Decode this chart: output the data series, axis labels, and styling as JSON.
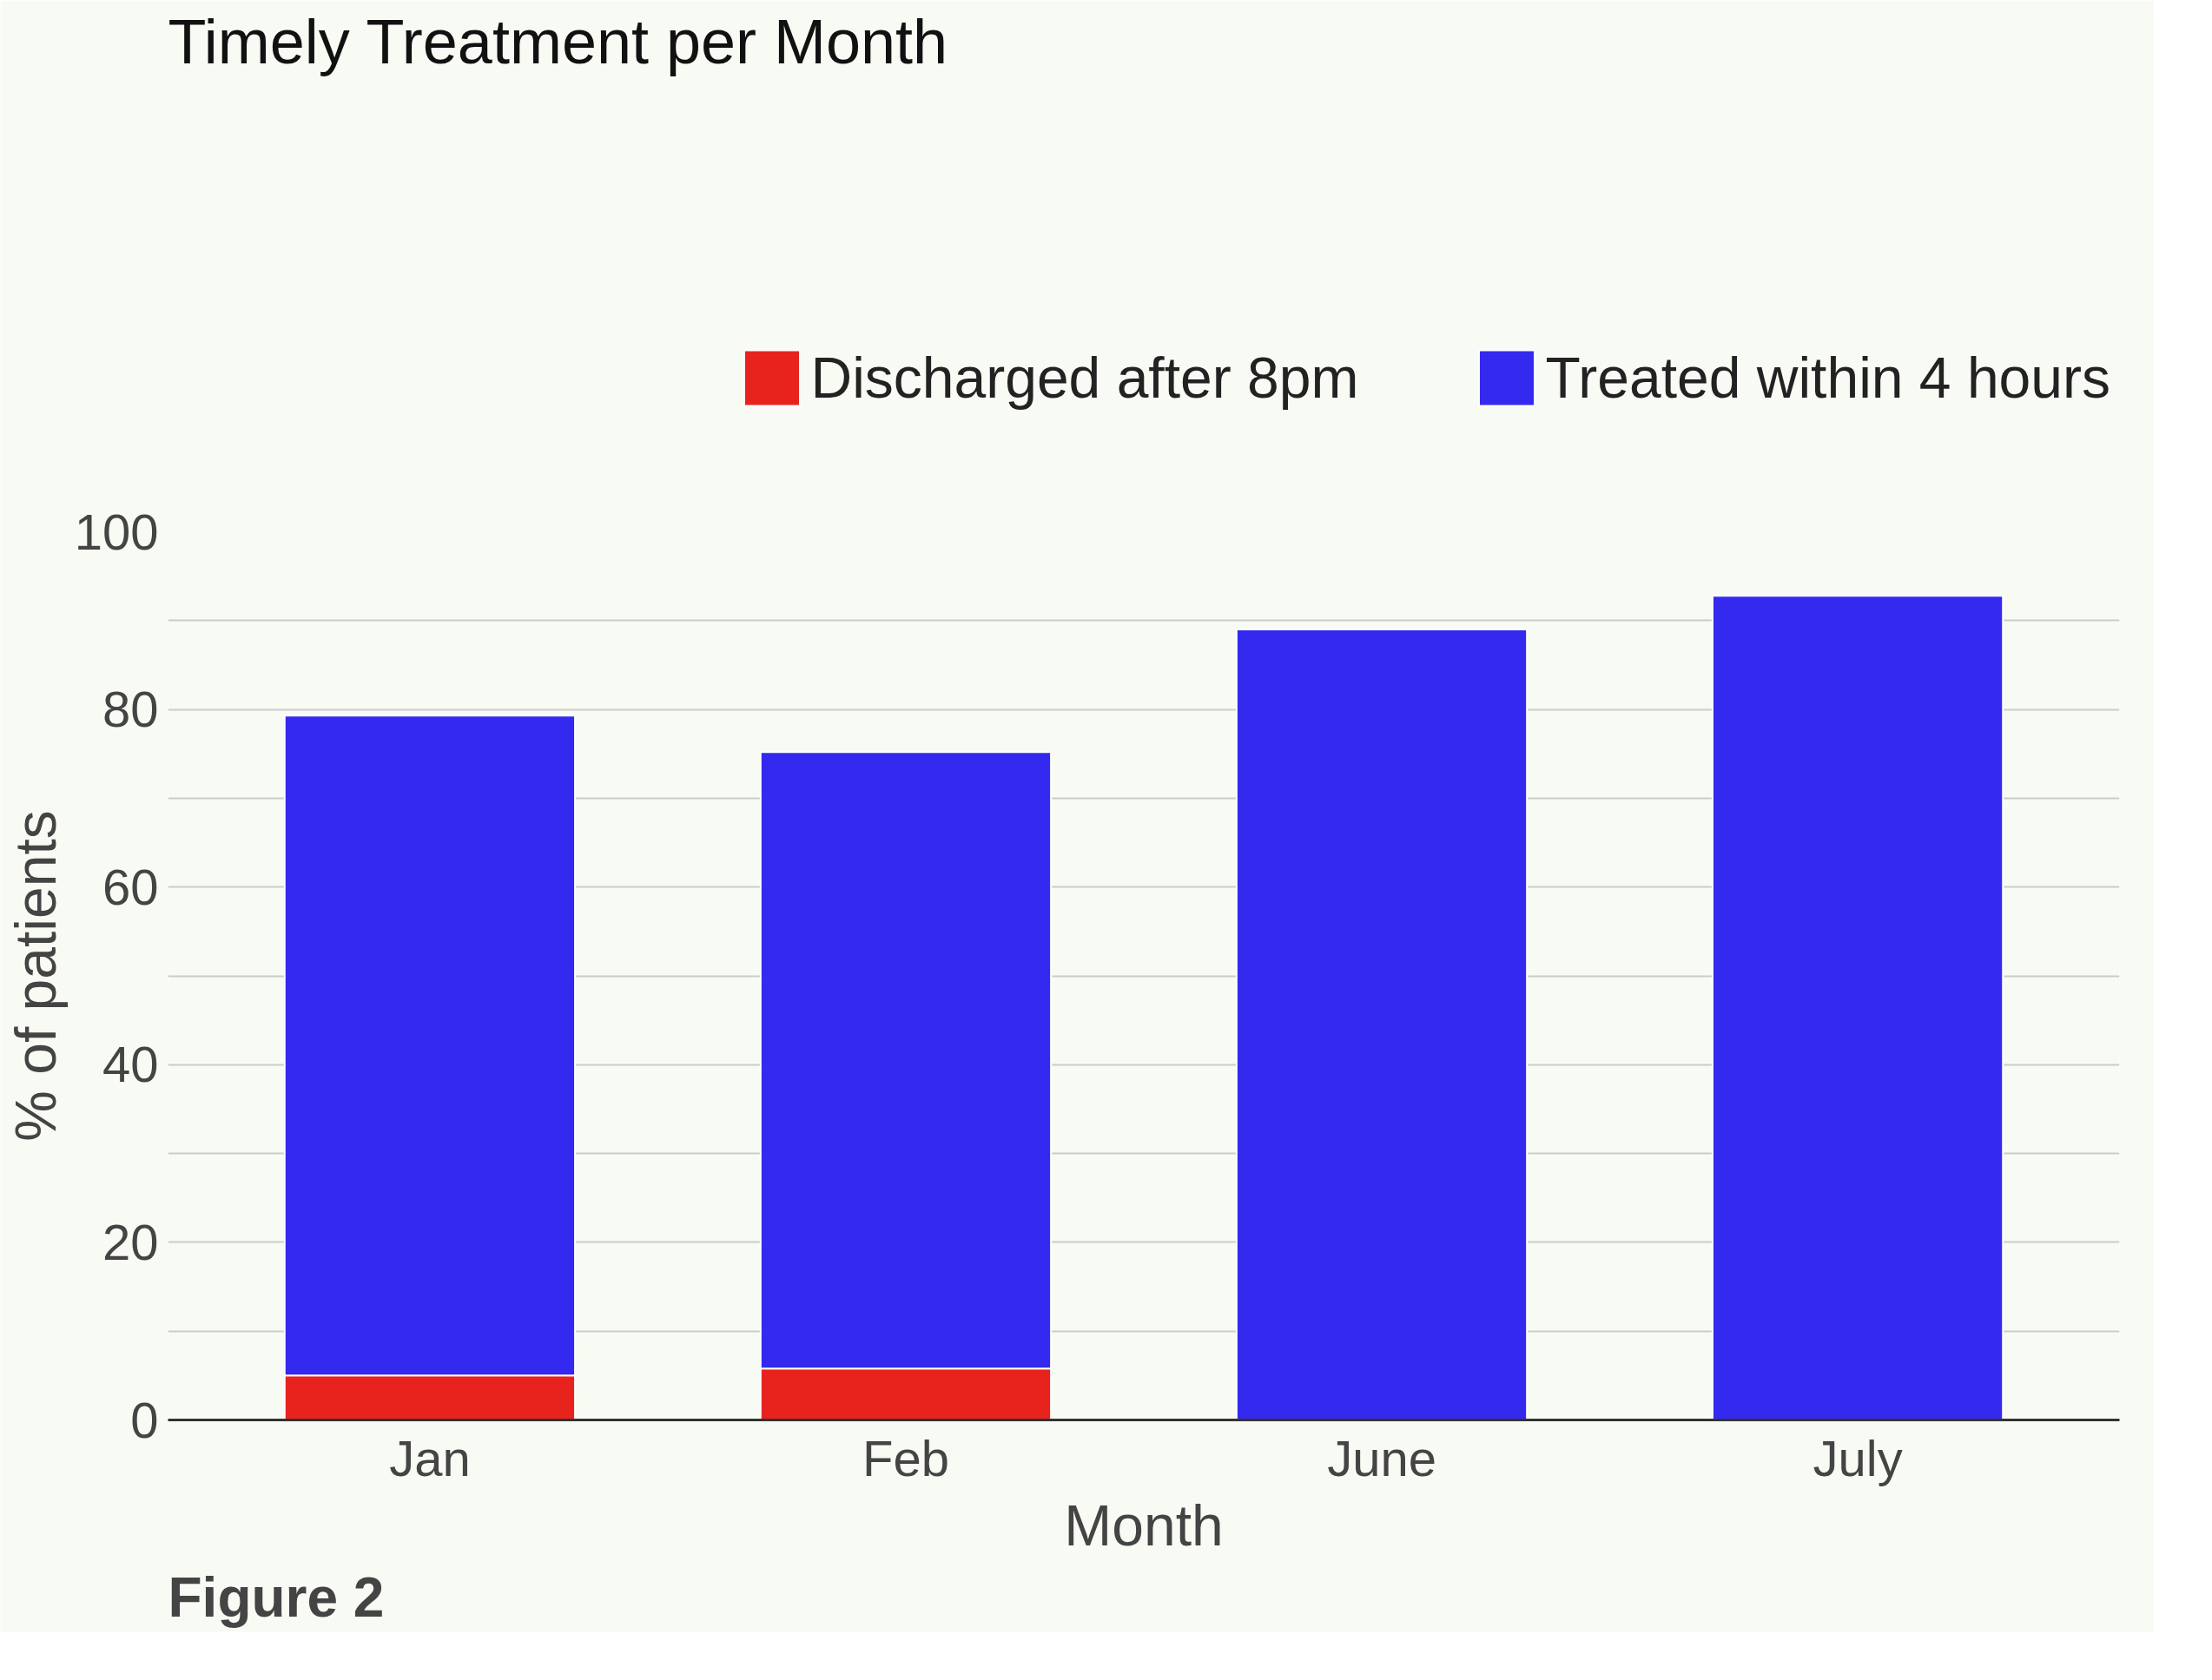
{
  "chart_data": {
    "type": "bar",
    "title": "Timely Treatment per Month",
    "xlabel": "Month",
    "ylabel": "% of patients",
    "categories": [
      "Jan",
      "Feb",
      "June",
      "July"
    ],
    "stacked": true,
    "series": [
      {
        "name": "Discharged after 8pm",
        "color": "#e8231d",
        "values": [
          5,
          5.8,
          0,
          0
        ]
      },
      {
        "name": "Treated within 4 hours",
        "color": "#3429ee",
        "values": [
          74.3,
          69.4,
          89,
          92.8
        ]
      }
    ],
    "ylim": [
      0,
      100
    ],
    "yticks": [
      0,
      {
        "value": 10,
        "label": null
      },
      20,
      {
        "value": 30,
        "label": null
      },
      40,
      {
        "value": 50,
        "label": null
      },
      60,
      {
        "value": 70,
        "label": null
      },
      80,
      {
        "value": 90,
        "label": null
      },
      100
    ],
    "grid": "y",
    "legend": "top",
    "annotations": [
      "Figure 2"
    ]
  }
}
